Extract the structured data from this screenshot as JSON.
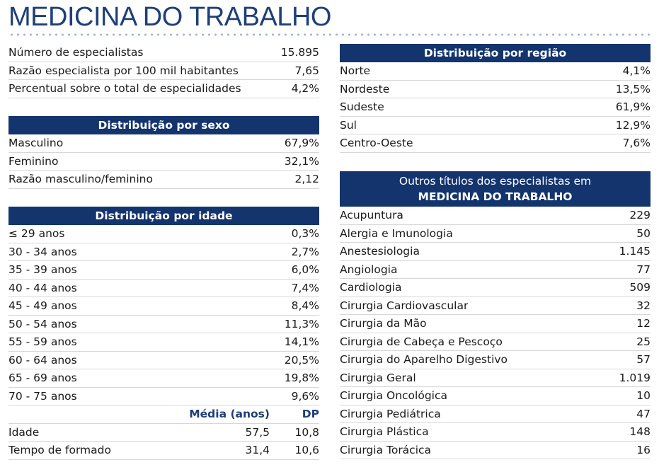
{
  "title": "MEDICINA DO TRABALHO",
  "summary": [
    {
      "label": "Número de especialistas",
      "value": "15.895"
    },
    {
      "label": "Razão especialista por 100 mil habitantes",
      "value": "7,65"
    },
    {
      "label": "Percentual sobre o total de especialidades",
      "value": "4,2%"
    }
  ],
  "sexo": {
    "header": "Distribuição por sexo",
    "rows": [
      {
        "label": "Masculino",
        "value": "67,9%"
      },
      {
        "label": "Feminino",
        "value": "32,1%"
      },
      {
        "label": "Razão masculino/feminino",
        "value": "2,12"
      }
    ]
  },
  "idade": {
    "header": "Distribuição por idade",
    "rows": [
      {
        "label": "≤ 29 anos",
        "value": "0,3%"
      },
      {
        "label": "30 - 34 anos",
        "value": "2,7%"
      },
      {
        "label": "35 - 39 anos",
        "value": "6,0%"
      },
      {
        "label": "40 - 44 anos",
        "value": "7,4%"
      },
      {
        "label": "45 - 49 anos",
        "value": "8,4%"
      },
      {
        "label": "50 - 54 anos",
        "value": "11,3%"
      },
      {
        "label": "55 - 59 anos",
        "value": "14,1%"
      },
      {
        "label": "60 - 64 anos",
        "value": "20,5%"
      },
      {
        "label": "65 - 69 anos",
        "value": "19,8%"
      },
      {
        "label": "70 - 75 anos",
        "value": "9,6%"
      }
    ],
    "stats_header": {
      "media": "Média (anos)",
      "dp": "DP"
    },
    "stats": [
      {
        "label": "Idade",
        "media": "57,5",
        "dp": "10,8"
      },
      {
        "label": "Tempo de formado",
        "media": "31,4",
        "dp": "10,6"
      }
    ]
  },
  "regiao": {
    "header": "Distribuição por região",
    "rows": [
      {
        "label": "Norte",
        "value": "4,1%"
      },
      {
        "label": "Nordeste",
        "value": "13,5%"
      },
      {
        "label": "Sudeste",
        "value": "61,9%"
      },
      {
        "label": "Sul",
        "value": "12,9%"
      },
      {
        "label": "Centro-Oeste",
        "value": "7,6%"
      }
    ]
  },
  "outros": {
    "header_line1": "Outros títulos dos especialistas em",
    "header_line2": "MEDICINA DO TRABALHO",
    "rows": [
      {
        "label": "Acupuntura",
        "value": "229"
      },
      {
        "label": "Alergia e Imunologia",
        "value": "50"
      },
      {
        "label": "Anestesiologia",
        "value": "1.145"
      },
      {
        "label": "Angiologia",
        "value": "77"
      },
      {
        "label": "Cardiologia",
        "value": "509"
      },
      {
        "label": "Cirurgia Cardiovascular",
        "value": "32"
      },
      {
        "label": "Cirurgia da Mão",
        "value": "12"
      },
      {
        "label": "Cirurgia de Cabeça e Pescoço",
        "value": "25"
      },
      {
        "label": "Cirurgia do Aparelho Digestivo",
        "value": "57"
      },
      {
        "label": "Cirurgia Geral",
        "value": "1.019"
      },
      {
        "label": "Cirurgia Oncológica",
        "value": "10"
      },
      {
        "label": "Cirurgia Pediátrica",
        "value": "47"
      },
      {
        "label": "Cirurgia Plástica",
        "value": "148"
      },
      {
        "label": "Cirurgia Torácica",
        "value": "16"
      }
    ]
  }
}
